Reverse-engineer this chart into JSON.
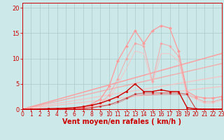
{
  "bg_color": "#cce8e8",
  "grid_color": "#aacccc",
  "xlabel": "Vent moyen/en rafales ( km/h )",
  "xlabel_color": "#cc0000",
  "xlabel_fontsize": 7,
  "tick_color": "#cc0000",
  "x_min": 0,
  "x_max": 23,
  "y_min": 0,
  "y_max": 21,
  "yticks": [
    0,
    5,
    10,
    15,
    20
  ],
  "xticks": [
    0,
    1,
    2,
    3,
    4,
    5,
    6,
    7,
    8,
    9,
    10,
    11,
    12,
    13,
    14,
    15,
    16,
    17,
    18,
    19,
    20,
    21,
    22,
    23
  ],
  "series": {
    "line_pink_high": {
      "x": [
        0,
        1,
        2,
        3,
        4,
        5,
        6,
        7,
        8,
        9,
        10,
        11,
        12,
        13,
        14,
        15,
        16,
        17,
        18,
        19,
        20,
        21,
        22,
        23
      ],
      "y": [
        0,
        0,
        0,
        0,
        0,
        0,
        0,
        0.5,
        1.0,
        2.0,
        4.5,
        9.5,
        12.5,
        15.5,
        13.0,
        15.5,
        16.5,
        16.0,
        11.5,
        3.5,
        2.5,
        2.2,
        2.2,
        2.5
      ],
      "color": "#ff9999",
      "linewidth": 0.9,
      "marker": "D",
      "markersize": 2.0,
      "alpha": 1.0
    },
    "line_pink_low": {
      "x": [
        0,
        1,
        2,
        3,
        4,
        5,
        6,
        7,
        8,
        9,
        10,
        11,
        12,
        13,
        14,
        15,
        16,
        17,
        18,
        19,
        20,
        21,
        22,
        23
      ],
      "y": [
        0,
        0,
        0,
        0,
        0,
        0,
        0,
        0.3,
        0.6,
        1.2,
        2.8,
        6.0,
        10.0,
        13.0,
        12.5,
        5.5,
        13.0,
        12.5,
        10.5,
        3.0,
        2.2,
        1.5,
        1.5,
        2.0
      ],
      "color": "#ff9999",
      "linewidth": 0.8,
      "marker": "D",
      "markersize": 1.8,
      "alpha": 0.7
    },
    "line_red_high": {
      "x": [
        0,
        1,
        2,
        3,
        4,
        5,
        6,
        7,
        8,
        9,
        10,
        11,
        12,
        13,
        14,
        15,
        16,
        17,
        18,
        19,
        20,
        21,
        22,
        23
      ],
      "y": [
        0,
        0,
        0.05,
        0.1,
        0.15,
        0.2,
        0.3,
        0.5,
        0.8,
        1.2,
        1.8,
        2.5,
        3.5,
        5.0,
        3.5,
        3.5,
        3.8,
        3.5,
        3.5,
        0.3,
        0.05,
        0.02,
        0.02,
        0.02
      ],
      "color": "#cc0000",
      "linewidth": 1.0,
      "marker": "s",
      "markersize": 2.0,
      "alpha": 1.0
    },
    "line_red_low": {
      "x": [
        0,
        1,
        2,
        3,
        4,
        5,
        6,
        7,
        8,
        9,
        10,
        11,
        12,
        13,
        14,
        15,
        16,
        17,
        18,
        19,
        20,
        21,
        22,
        23
      ],
      "y": [
        0,
        0,
        0,
        0,
        0,
        0.05,
        0.1,
        0.15,
        0.3,
        0.6,
        0.9,
        1.5,
        2.2,
        3.0,
        3.2,
        3.2,
        3.2,
        3.2,
        3.2,
        3.0,
        0.1,
        0.02,
        0.02,
        0.02
      ],
      "color": "#cc0000",
      "linewidth": 0.7,
      "marker": "s",
      "markersize": 1.6,
      "alpha": 0.6
    },
    "cumul_pink": {
      "x": [
        0,
        1,
        2,
        3,
        4,
        5,
        6,
        7,
        8,
        9,
        10,
        11,
        12,
        13,
        14,
        15,
        16,
        17,
        18,
        19,
        20,
        21,
        22,
        23
      ],
      "y": [
        0,
        0,
        0,
        0,
        0,
        0,
        0,
        0.1,
        0.3,
        0.8,
        2.0,
        5.0,
        8.0,
        11.5,
        11.0,
        5.0,
        11.0,
        11.0,
        9.5,
        2.8,
        2.0,
        1.2,
        1.2,
        1.8
      ],
      "color": "#ffbbbb",
      "linewidth": 0.7,
      "marker": null,
      "markersize": 0,
      "alpha": 0.8
    },
    "cumul_red": {
      "x": [
        0,
        1,
        2,
        3,
        4,
        5,
        6,
        7,
        8,
        9,
        10,
        11,
        12,
        13,
        14,
        15,
        16,
        17,
        18,
        19,
        20,
        21,
        22,
        23
      ],
      "y": [
        0,
        0,
        0,
        0,
        0,
        0,
        0.05,
        0.1,
        0.2,
        0.5,
        0.8,
        1.2,
        2.0,
        2.8,
        2.8,
        2.8,
        2.9,
        2.9,
        2.9,
        2.8,
        0.05,
        0.01,
        0.01,
        0.01
      ],
      "color": "#cc0000",
      "linewidth": 0.6,
      "marker": null,
      "markersize": 0,
      "alpha": 0.4
    },
    "linear1": {
      "x": [
        0,
        23
      ],
      "y": [
        0,
        11.0
      ],
      "color": "#ff9999",
      "linewidth": 1.1,
      "alpha": 0.9
    },
    "linear2": {
      "x": [
        0,
        23
      ],
      "y": [
        0,
        9.0
      ],
      "color": "#ff9999",
      "linewidth": 1.0,
      "alpha": 0.75
    },
    "linear3": {
      "x": [
        0,
        23
      ],
      "y": [
        0,
        6.5
      ],
      "color": "#ffbbbb",
      "linewidth": 0.9,
      "alpha": 0.85
    },
    "linear4": {
      "x": [
        0,
        23
      ],
      "y": [
        0,
        4.5
      ],
      "color": "#ffbbbb",
      "linewidth": 0.9,
      "alpha": 0.85
    }
  }
}
